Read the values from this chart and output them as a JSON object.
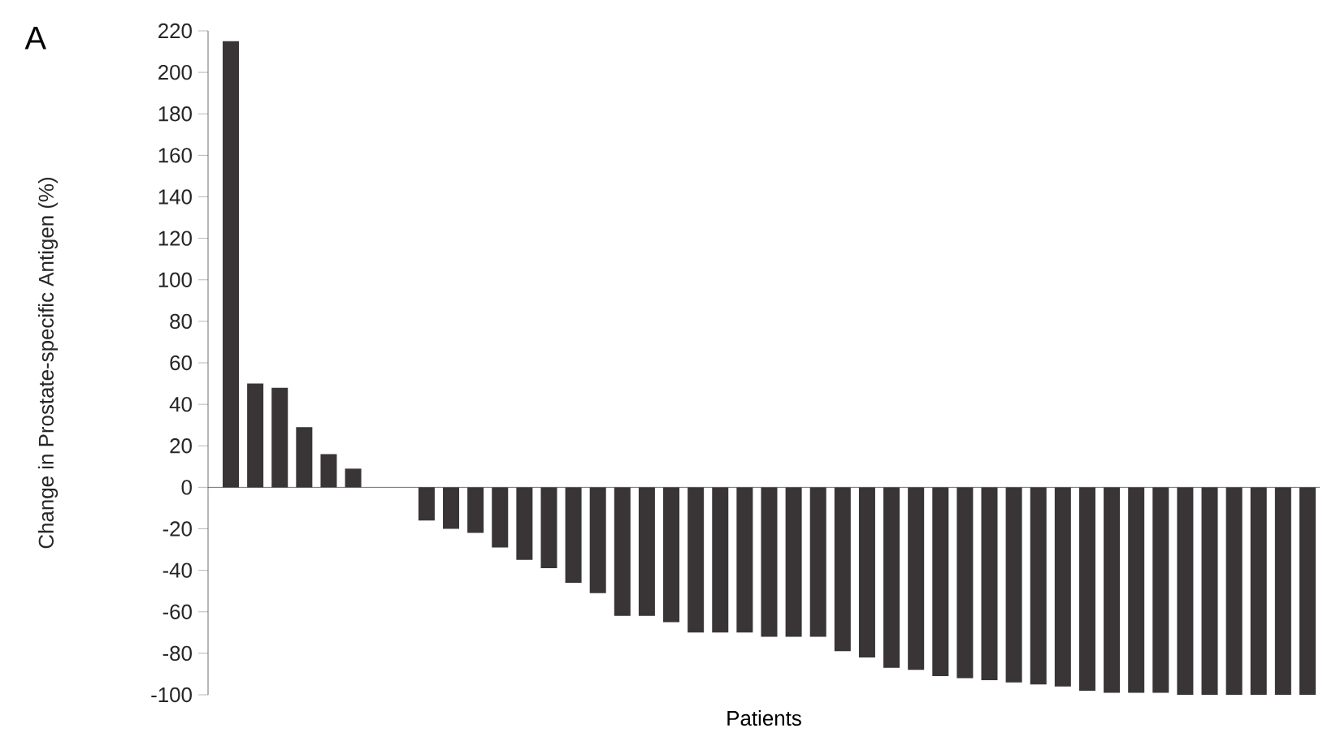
{
  "chart_data": {
    "type": "bar",
    "title": "A",
    "xlabel": "Patients",
    "ylabel": "Change in Prostate-specific Antigen (%)",
    "categories": [
      null,
      null,
      null,
      null,
      null,
      null,
      null,
      null,
      null,
      null,
      null,
      null,
      null,
      null,
      null,
      null,
      null,
      null,
      null,
      null,
      null,
      null,
      null,
      null,
      null,
      null,
      null,
      null,
      null,
      null,
      null,
      null,
      null,
      null,
      null,
      null,
      null,
      null,
      null,
      null,
      null,
      null,
      null,
      null,
      null
    ],
    "values": [
      215,
      50,
      48,
      29,
      16,
      9,
      null,
      null,
      -16,
      -20,
      -22,
      -29,
      -35,
      -39,
      -46,
      -51,
      -62,
      -62,
      -65,
      -70,
      -70,
      -70,
      -72,
      -72,
      -72,
      -79,
      -82,
      -87,
      -88,
      -91,
      -92,
      -93,
      -94,
      -95,
      -96,
      -98,
      -99,
      -99,
      -99,
      -100,
      -100,
      -100,
      -100,
      -100,
      -100
    ],
    "color": "#393536",
    "ylim": [
      -100,
      220
    ],
    "yticks": [
      -100,
      -80,
      -60,
      -40,
      -20,
      0,
      20,
      40,
      60,
      80,
      100,
      120,
      140,
      160,
      180,
      200,
      220
    ],
    "tick_labels": "y"
  }
}
